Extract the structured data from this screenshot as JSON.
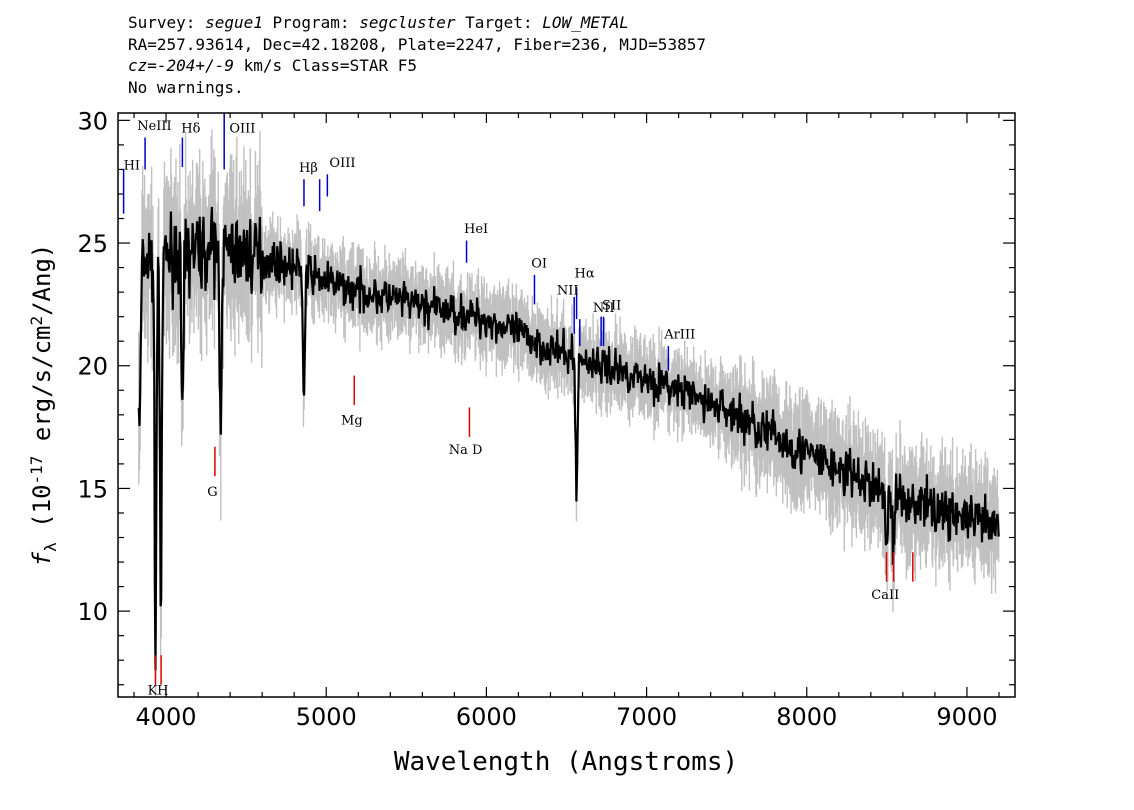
{
  "header": {
    "line1": {
      "survey_label": "Survey: ",
      "survey": "segue1",
      "program_label": " Program: ",
      "program": "segcluster",
      "target_label": " Target: ",
      "target": "LOW_METAL"
    },
    "line2": "RA=257.93614, Dec=42.18208, Plate=2247, Fiber=236, MJD=53857",
    "line3": {
      "cz": "cz=-204+/-9",
      "rest": " km/s Class=STAR F5"
    },
    "line4": "No warnings."
  },
  "colors": {
    "flux": "#000000",
    "error_band": "#c0c0c0",
    "emission_line": "#0000cc",
    "absorption_line": "#dd0000"
  },
  "chart_data": {
    "type": "line",
    "xlabel": "Wavelength (Angstroms)",
    "ylabel": "f_λ (10^-17 erg/s/cm^2/Ang)",
    "xlim": [
      3700,
      9300
    ],
    "ylim": [
      6.5,
      30.3
    ],
    "xticks": [
      4000,
      5000,
      6000,
      7000,
      8000,
      9000
    ],
    "yticks": [
      10,
      15,
      20,
      25,
      30
    ],
    "grid": false,
    "continuum_points": [
      [
        3830,
        24.0
      ],
      [
        3900,
        24.3
      ],
      [
        4000,
        24.5
      ],
      [
        4200,
        24.7
      ],
      [
        4500,
        24.6
      ],
      [
        4800,
        24.0
      ],
      [
        5100,
        23.2
      ],
      [
        5500,
        22.6
      ],
      [
        6000,
        21.9
      ],
      [
        6500,
        20.4
      ],
      [
        7000,
        19.5
      ],
      [
        7500,
        18.2
      ],
      [
        8000,
        16.4
      ],
      [
        8500,
        14.8
      ],
      [
        9000,
        13.8
      ],
      [
        9200,
        13.3
      ]
    ],
    "absorption_dips": [
      {
        "x": 3835,
        "y": 17.0
      },
      {
        "x": 3934,
        "y": 9.0
      },
      {
        "x": 3968,
        "y": 10.0
      },
      {
        "x": 4102,
        "y": 16.7
      },
      {
        "x": 4340,
        "y": 17.8
      },
      {
        "x": 4861,
        "y": 18.7
      },
      {
        "x": 6563,
        "y": 14.9
      },
      {
        "x": 8498,
        "y": 12.5
      },
      {
        "x": 8542,
        "y": 12.2
      }
    ],
    "emission_lines": [
      {
        "label": "HI",
        "x": 3735,
        "y_top": 28.0,
        "y_bottom": 26.2
      },
      {
        "label": "NeIII",
        "x": 3869,
        "y_top": 29.3,
        "y_bottom": 28.0
      },
      {
        "label": "Hδ",
        "x": 4102,
        "y_top": 29.3,
        "y_bottom": 28.1
      },
      {
        "label": "OIII",
        "x": 4363,
        "y_top": 30.3,
        "y_bottom": 29.3
      },
      {
        "label": "OIII",
        "x": 4363,
        "y_top": 29.3,
        "y_bottom": 28.0
      },
      {
        "label": "Hβ",
        "x": 4861,
        "y_top": 27.6,
        "y_bottom": 26.5
      },
      {
        "label": "OIII",
        "x": 4959,
        "y_top": 27.6,
        "y_bottom": 26.3
      },
      {
        "label": "OIII",
        "x": 5007,
        "y_top": 27.8,
        "y_bottom": 26.9
      },
      {
        "label": "HeI",
        "x": 5876,
        "y_top": 25.1,
        "y_bottom": 24.2
      },
      {
        "label": "OI",
        "x": 6300,
        "y_top": 23.7,
        "y_bottom": 22.5
      },
      {
        "label": "NII",
        "x": 6548,
        "y_top": 22.8,
        "y_bottom": 21.3
      },
      {
        "label": "Hα",
        "x": 6563,
        "y_top": 23.2,
        "y_bottom": 21.9
      },
      {
        "label": "NII",
        "x": 6583,
        "y_top": 21.9,
        "y_bottom": 20.8
      },
      {
        "label": "SII",
        "x": 6716,
        "y_top": 22.0,
        "y_bottom": 20.8
      },
      {
        "label": "SII",
        "x": 6731,
        "y_top": 22.0,
        "y_bottom": 20.8
      },
      {
        "label": "ArIII",
        "x": 7136,
        "y_top": 20.8,
        "y_bottom": 19.8
      }
    ],
    "emission_labels": [
      {
        "text": "HI",
        "x": 3735,
        "y": 28.0
      },
      {
        "text": "NeIII",
        "x": 3820,
        "y": 29.6
      },
      {
        "text": "Hδ",
        "x": 4095,
        "y": 29.5
      },
      {
        "text": "OIII",
        "x": 4395,
        "y": 29.5
      },
      {
        "text": "Hβ",
        "x": 4830,
        "y": 27.9
      },
      {
        "text": "OIII",
        "x": 5020,
        "y": 28.1
      },
      {
        "text": "HeI",
        "x": 5860,
        "y": 25.4
      },
      {
        "text": "OI",
        "x": 6280,
        "y": 24.0
      },
      {
        "text": "NII",
        "x": 6440,
        "y": 22.9
      },
      {
        "text": "Hα",
        "x": 6550,
        "y": 23.6
      },
      {
        "text": "NII",
        "x": 6665,
        "y": 22.2
      },
      {
        "text": "SII",
        "x": 6722,
        "y": 22.3
      },
      {
        "text": "ArIII",
        "x": 7110,
        "y": 21.1
      }
    ],
    "absorption_lines": [
      {
        "label": "K",
        "x": 3934,
        "y_top": 8.2,
        "y_bottom": 7.0
      },
      {
        "label": "H",
        "x": 3969,
        "y_top": 8.2,
        "y_bottom": 7.0
      },
      {
        "label": "G",
        "x": 4305,
        "y_top": 16.7,
        "y_bottom": 15.5
      },
      {
        "label": "Mg",
        "x": 5175,
        "y_top": 19.6,
        "y_bottom": 18.4
      },
      {
        "label": "Na D",
        "x": 5894,
        "y_top": 18.3,
        "y_bottom": 17.1
      },
      {
        "label": "CaII",
        "x": 8498,
        "y_top": 12.4,
        "y_bottom": 11.2
      },
      {
        "label": "CaII",
        "x": 8542,
        "y_top": 12.4,
        "y_bottom": 11.2
      },
      {
        "label": "CaII",
        "x": 8662,
        "y_top": 12.4,
        "y_bottom": 11.2
      }
    ],
    "absorption_labels": [
      {
        "text": "K",
        "x": 3915,
        "y": 6.6
      },
      {
        "text": "H",
        "x": 3980,
        "y": 6.6
      },
      {
        "text": "G",
        "x": 4290,
        "y": 14.7
      },
      {
        "text": "Mg",
        "x": 5160,
        "y": 17.6
      },
      {
        "text": "Na D",
        "x": 5870,
        "y": 16.4
      },
      {
        "text": "CaII",
        "x": 8490,
        "y": 10.5
      }
    ]
  }
}
